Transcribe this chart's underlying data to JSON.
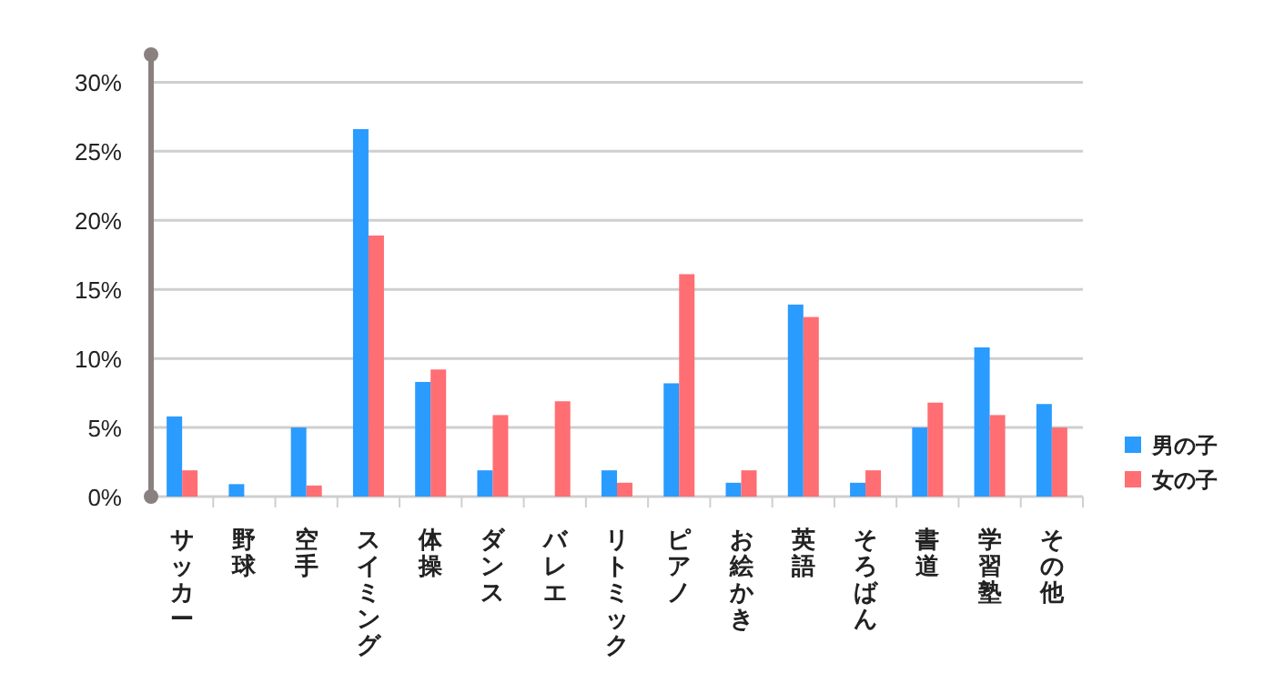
{
  "chart_data": {
    "type": "bar",
    "categories": [
      "サッカー",
      "野球",
      "空手",
      "スイミング",
      "体操",
      "ダンス",
      "バレエ",
      "リトミック",
      "ピアノ",
      "お絵かき",
      "英語",
      "そろばん",
      "書道",
      "学習塾",
      "その他"
    ],
    "series": [
      {
        "name": "男の子",
        "color": "#2a9bff",
        "values": [
          5.8,
          0.9,
          5.0,
          26.6,
          8.3,
          1.9,
          0,
          1.9,
          8.2,
          1.0,
          13.9,
          1.0,
          5.0,
          10.8,
          6.7
        ]
      },
      {
        "name": "女の子",
        "color": "#ff6e73",
        "values": [
          1.9,
          0,
          0.8,
          18.9,
          9.2,
          5.9,
          6.9,
          1.0,
          16.1,
          1.9,
          13.0,
          1.9,
          6.8,
          5.9,
          5.0
        ]
      }
    ],
    "ylim": [
      0,
      32
    ],
    "yticks": [
      {
        "value": 0,
        "label": "0%"
      },
      {
        "value": 5,
        "label": "5%"
      },
      {
        "value": 10,
        "label": "10%"
      },
      {
        "value": 15,
        "label": "15%"
      },
      {
        "value": 20,
        "label": "20%"
      },
      {
        "value": 25,
        "label": "25%"
      },
      {
        "value": 30,
        "label": "30%"
      }
    ],
    "grid": "y",
    "legend": "right"
  }
}
